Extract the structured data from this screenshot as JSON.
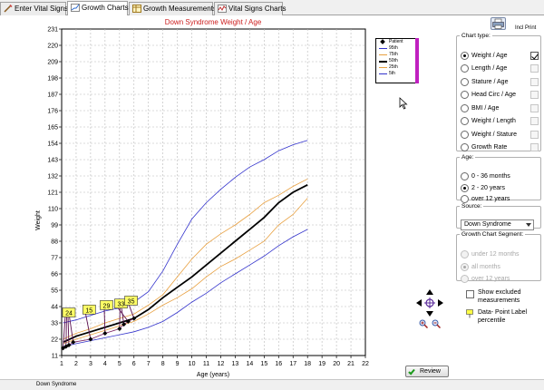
{
  "tabs": [
    {
      "label": "Enter Vital Signs",
      "active": false
    },
    {
      "label": "Growth Charts",
      "active": true
    },
    {
      "label": "Growth Measurements",
      "active": false
    },
    {
      "label": "Vital Signs Charts",
      "active": false
    }
  ],
  "print": {
    "incl_print_label": "Incl Print"
  },
  "chart_data": {
    "type": "line",
    "title": "Down Syndrome Weight / Age",
    "xlabel": "Age (years)",
    "ylabel": "Weight",
    "xlim": [
      1,
      22
    ],
    "ylim": [
      11,
      231
    ],
    "x_ticks": [
      "1",
      "2",
      "3",
      "4",
      "5",
      "6",
      "7",
      "8",
      "9",
      "10",
      "11",
      "12",
      "13",
      "14",
      "15",
      "16",
      "17",
      "18",
      "19",
      "20",
      "21",
      "22"
    ],
    "y_ticks": [
      "11",
      "22",
      "33",
      "44",
      "55",
      "66",
      "77",
      "88",
      "99",
      "110",
      "121",
      "132",
      "143",
      "154",
      "165",
      "176",
      "187",
      "198",
      "209",
      "220",
      "231"
    ],
    "grid": true,
    "legend_position": "top-right",
    "legend": [
      "Patient",
      "95th",
      "75th",
      "50th",
      "25th",
      "5th"
    ],
    "colors": {
      "95th": "#3333cc",
      "75th": "#e8a040",
      "50th": "#000000",
      "25th": "#e8a040",
      "5th": "#3333cc",
      "patient": "#7a2060",
      "label_bg": "#ffff66"
    },
    "series": [
      {
        "name": "95th",
        "x": [
          1.1,
          2,
          3,
          4,
          5,
          6,
          7,
          8,
          9,
          10,
          11,
          12,
          13,
          14,
          15,
          16,
          17,
          18
        ],
        "y": [
          33,
          35,
          38,
          41,
          43,
          47,
          54,
          68,
          86,
          103,
          114,
          123,
          131,
          138,
          143,
          149,
          153,
          156
        ]
      },
      {
        "name": "75th",
        "x": [
          1.1,
          2,
          3,
          4,
          5,
          6,
          7,
          8,
          9,
          10,
          11,
          12,
          13,
          14,
          15,
          16,
          17,
          18
        ],
        "y": [
          22,
          26,
          29,
          33,
          36,
          39,
          45,
          52,
          64,
          76,
          86,
          93,
          99,
          106,
          114,
          119,
          125,
          130
        ]
      },
      {
        "name": "50th",
        "x": [
          1.1,
          2,
          3,
          4,
          5,
          6,
          7,
          8,
          9,
          10,
          11,
          12,
          13,
          14,
          15,
          16,
          17,
          18
        ],
        "y": [
          20,
          24,
          27,
          30,
          33,
          36,
          42,
          50,
          57,
          64,
          72,
          80,
          88,
          96,
          104,
          114,
          121,
          126
        ]
      },
      {
        "name": "25th",
        "x": [
          1.1,
          2,
          3,
          4,
          5,
          6,
          7,
          8,
          9,
          10,
          11,
          12,
          13,
          14,
          15,
          16,
          17,
          18
        ],
        "y": [
          19,
          22,
          25,
          28,
          31,
          34,
          39,
          45,
          50,
          56,
          64,
          71,
          76,
          82,
          88,
          99,
          106,
          117
        ]
      },
      {
        "name": "5th",
        "x": [
          1.1,
          2,
          3,
          4,
          5,
          6,
          7,
          8,
          9,
          10,
          11,
          12,
          13,
          14,
          15,
          16,
          17,
          18
        ],
        "y": [
          17,
          19,
          21,
          23,
          25,
          27,
          30,
          34,
          40,
          47,
          53,
          60,
          66,
          72,
          78,
          85,
          91,
          96
        ]
      }
    ],
    "patient_points": [
      {
        "x": 1.1,
        "y": 16,
        "label": ""
      },
      {
        "x": 1.3,
        "y": 17,
        "label": ""
      },
      {
        "x": 1.5,
        "y": 18,
        "label": ""
      },
      {
        "x": 1.8,
        "y": 20,
        "label": ""
      },
      {
        "x": 3,
        "y": 22,
        "label": "15"
      },
      {
        "x": 4,
        "y": 26,
        "label": "29"
      },
      {
        "x": 5,
        "y": 29,
        "label": "33"
      },
      {
        "x": 5.3,
        "y": 32,
        "label": ""
      },
      {
        "x": 5.6,
        "y": 34,
        "label": ""
      },
      {
        "x": 6,
        "y": 36,
        "label": "35"
      }
    ],
    "data_labels": [
      "24",
      "15",
      "29",
      "33",
      "35"
    ]
  },
  "panel": {
    "chart_type": {
      "legend": "Chart type:",
      "options": [
        {
          "label": "Weight / Age",
          "selected": true,
          "include": true
        },
        {
          "label": "Length / Age",
          "selected": false,
          "include": false
        },
        {
          "label": "Stature / Age",
          "selected": false,
          "include": false
        },
        {
          "label": "Head Circ / Age",
          "selected": false,
          "include": false
        },
        {
          "label": "BMI / Age",
          "selected": false,
          "include": false
        },
        {
          "label": "Weight / Length",
          "selected": false,
          "include": false
        },
        {
          "label": "Weight / Stature",
          "selected": false,
          "include": false
        },
        {
          "label": "Growth Rate",
          "selected": false,
          "include": false
        }
      ]
    },
    "age": {
      "legend": "Age:",
      "options": [
        {
          "label": "0 - 36 months",
          "selected": false
        },
        {
          "label": "2 - 20 years",
          "selected": true
        },
        {
          "label": "over 12 years",
          "selected": false
        }
      ]
    },
    "source": {
      "legend": "Source:",
      "value": "Down Syndrome"
    },
    "segment": {
      "legend": "Growth Chart Segment:",
      "options": [
        {
          "label": "under 12 months",
          "selected": false
        },
        {
          "label": "all months",
          "selected": true
        },
        {
          "label": "over 12 years",
          "selected": false
        }
      ]
    },
    "show_excluded_label": "Show excluded measurements",
    "data_point_label": "Data- Point Label percentile",
    "review_label": "Review"
  },
  "status_text": "Down Syndrome"
}
